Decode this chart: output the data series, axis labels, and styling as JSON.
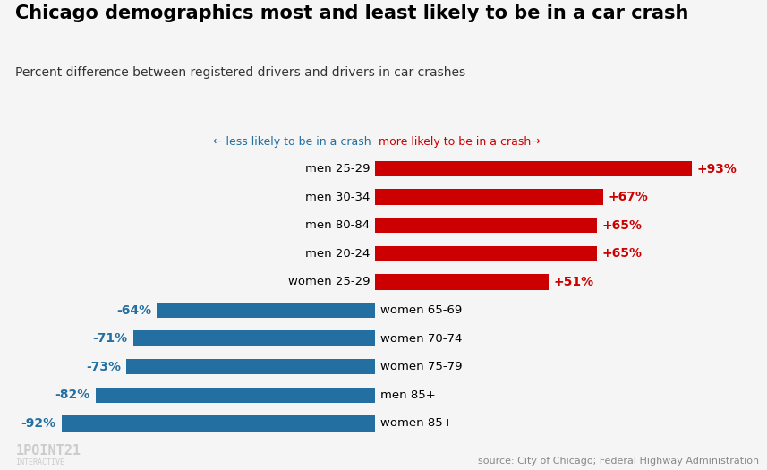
{
  "title": "Chicago demographics most and least likely to be in a car crash",
  "subtitle": "Percent difference between registered drivers and drivers in car crashes",
  "categories": [
    "men 25-29",
    "men 30-34",
    "men 80-84",
    "men 20-24",
    "women 25-29",
    "women 65-69",
    "women 70-74",
    "women 75-79",
    "men 85+",
    "women 85+"
  ],
  "values": [
    93,
    67,
    65,
    65,
    51,
    -64,
    -71,
    -73,
    -82,
    -92
  ],
  "labels": [
    "+93%",
    "+67%",
    "+65%",
    "+65%",
    "+51%",
    "-64%",
    "-71%",
    "-73%",
    "-82%",
    "-92%"
  ],
  "bar_color_positive": "#cc0000",
  "bar_color_negative": "#236fa1",
  "label_color_positive": "#cc0000",
  "label_color_negative": "#236fa1",
  "background_color": "#f5f5f5",
  "title_fontsize": 15,
  "subtitle_fontsize": 10,
  "xlim": [
    -110,
    115
  ],
  "source_text": "source: City of Chicago; Federal Highway Administration",
  "left_arrow_label": "← less likely to be in a crash",
  "right_arrow_label": "more likely to be in a crash→",
  "left_arrow_color": "#236fa1",
  "right_arrow_color": "#cc0000",
  "logo_text": "1POINT21",
  "logo_subtext": "INTERACTIVE",
  "bar_height": 0.55,
  "category_fontsize": 9.5,
  "label_fontsize": 10
}
